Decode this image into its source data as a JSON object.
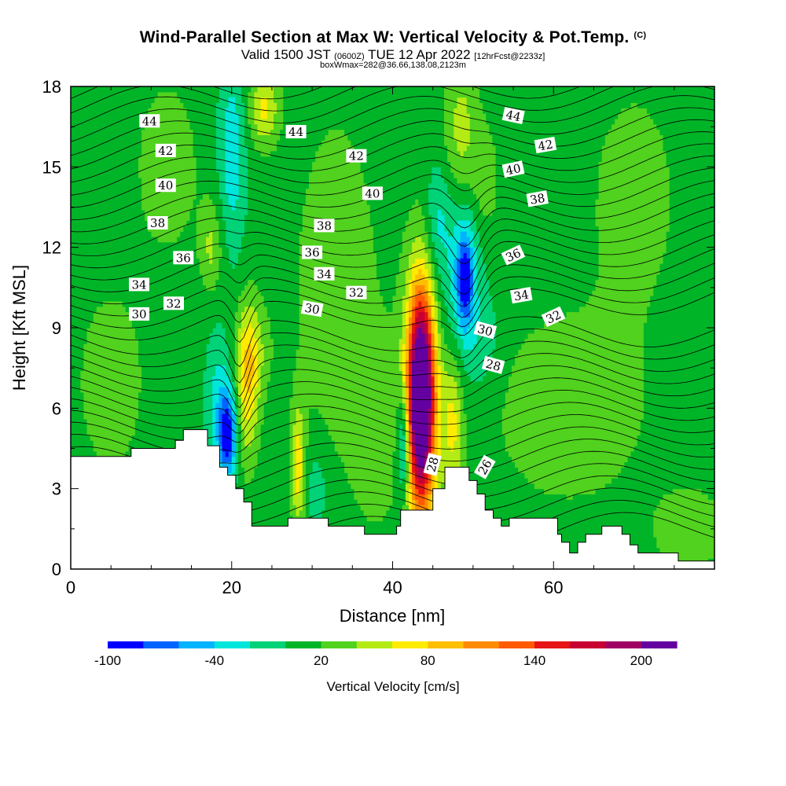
{
  "title": {
    "main": "Wind-Parallel Section at Max W: Vertical Velocity & Pot.Temp.",
    "copyright": "(C)",
    "valid_prefix": "Valid 1500 JST",
    "valid_utc": "(0600Z)",
    "valid_date": "TUE 12 Apr 2022",
    "forecast": "[12hrFcst@2233z]",
    "box_info": "boxWmax=282@36.66,138.08,2123m"
  },
  "colors": {
    "bins": [
      "#0000ff",
      "#0064ff",
      "#00b4ff",
      "#00e6dc",
      "#00d278",
      "#00b428",
      "#50d21e",
      "#b4eb14",
      "#ffeb00",
      "#ffbe00",
      "#ff8c00",
      "#ff5a00",
      "#e61414",
      "#c80032",
      "#a00064",
      "#6400a0"
    ],
    "background_bin": "#00d278",
    "terrain": "#ffffff",
    "contour": "#000000"
  },
  "chart_data": {
    "type": "heatmap",
    "xlabel": "Distance [nm]",
    "ylabel": "Height [Kft MSL]",
    "xlim": [
      0,
      80
    ],
    "ylim": [
      0,
      18
    ],
    "x_ticks": [
      0,
      20,
      40,
      60
    ],
    "y_ticks": [
      0,
      3,
      6,
      9,
      12,
      15,
      18
    ],
    "colorbar": {
      "label": "Vertical Velocity [cm/s]",
      "levels": [
        -100,
        -80,
        -60,
        -40,
        -20,
        0,
        20,
        40,
        60,
        80,
        100,
        120,
        140,
        160,
        180,
        200,
        220
      ],
      "tick_labels": [
        "-100",
        "-40",
        "20",
        "80",
        "140",
        "200"
      ],
      "tick_values": [
        -100,
        -40,
        20,
        80,
        140,
        200
      ]
    },
    "w_features": [
      {
        "x": 43.5,
        "y": 6.5,
        "sx": 1.1,
        "sy": 2.6,
        "w": 200
      },
      {
        "x": 43.5,
        "y": 6.0,
        "sx": 1.6,
        "sy": 3.6,
        "w": 90
      },
      {
        "x": 47.5,
        "y": 5.5,
        "sx": 0.9,
        "sy": 2.0,
        "w": 55
      },
      {
        "x": 28.3,
        "y": 3.8,
        "sx": 0.6,
        "sy": 1.6,
        "w": 60
      },
      {
        "x": 22.0,
        "y": 6.8,
        "sx": 1.0,
        "sy": 2.0,
        "w": 60
      },
      {
        "x": 22.5,
        "y": 8.2,
        "sx": 1.6,
        "sy": 1.3,
        "w": 30
      },
      {
        "x": 24.0,
        "y": 17.2,
        "sx": 1.3,
        "sy": 1.0,
        "w": 55
      },
      {
        "x": 48.5,
        "y": 16.2,
        "sx": 1.5,
        "sy": 2.0,
        "w": 45
      },
      {
        "x": 51.5,
        "y": 14.5,
        "sx": 1.2,
        "sy": 1.5,
        "w": 25
      },
      {
        "x": 17.5,
        "y": 12.0,
        "sx": 1.0,
        "sy": 1.2,
        "w": 35
      },
      {
        "x": 19.5,
        "y": 5.0,
        "sx": 0.8,
        "sy": 1.1,
        "w": -95
      },
      {
        "x": 18.5,
        "y": 6.3,
        "sx": 1.2,
        "sy": 1.8,
        "w": -35
      },
      {
        "x": 49.0,
        "y": 10.8,
        "sx": 0.7,
        "sy": 1.2,
        "w": -80
      },
      {
        "x": 48.5,
        "y": 11.0,
        "sx": 1.8,
        "sy": 2.8,
        "w": -40
      },
      {
        "x": 45.5,
        "y": 13.0,
        "sx": 1.0,
        "sy": 1.5,
        "w": -30
      },
      {
        "x": 20.0,
        "y": 15.5,
        "sx": 1.2,
        "sy": 2.6,
        "w": -40
      },
      {
        "x": 41.3,
        "y": 4.5,
        "sx": 0.5,
        "sy": 1.2,
        "w": -60
      },
      {
        "x": 41.5,
        "y": 5.0,
        "sx": 0.9,
        "sy": 2.2,
        "w": -25
      },
      {
        "x": 30.5,
        "y": 3.0,
        "sx": 1.0,
        "sy": 1.2,
        "w": -25
      },
      {
        "x": 51.5,
        "y": 8.5,
        "sx": 1.5,
        "sy": 1.3,
        "w": -20
      },
      {
        "x": 5.0,
        "y": 7.0,
        "sx": 3.0,
        "sy": 2.5,
        "w": 25
      },
      {
        "x": 12.0,
        "y": 15.0,
        "sx": 3.0,
        "sy": 2.5,
        "w": 23
      },
      {
        "x": 33.0,
        "y": 10.5,
        "sx": 4.0,
        "sy": 5.0,
        "w": 24
      },
      {
        "x": 38.0,
        "y": 5.0,
        "sx": 2.0,
        "sy": 2.5,
        "w": 22
      },
      {
        "x": 62.0,
        "y": 6.0,
        "sx": 8.0,
        "sy": 3.0,
        "w": 22
      },
      {
        "x": 70.0,
        "y": 14.0,
        "sx": 4.0,
        "sy": 3.0,
        "w": 22
      },
      {
        "x": 77.0,
        "y": 1.5,
        "sx": 3.0,
        "sy": 1.0,
        "w": 30
      }
    ],
    "terrain_profile": {
      "x": [
        0,
        7.5,
        7.5,
        13,
        13,
        14,
        14,
        17,
        17,
        18.5,
        18.5,
        19.5,
        19.5,
        20.5,
        20.5,
        21.5,
        21.5,
        22.5,
        22.5,
        24.5,
        24.5,
        27,
        27,
        31.5,
        31.5,
        32,
        32,
        36.5,
        36.5,
        40.5,
        40.5,
        41,
        41,
        45,
        45,
        46.5,
        46.5,
        49.5,
        49.5,
        50.5,
        50.5,
        51.5,
        51.5,
        52.5,
        52.5,
        53.5,
        53.5,
        54.5,
        54.5,
        55.5,
        55.5,
        60.5,
        60.5,
        61,
        61,
        62,
        62,
        63,
        63,
        64,
        64,
        66,
        66,
        68.5,
        68.5,
        69.5,
        69.5,
        70.5,
        70.5,
        75.5,
        75.5,
        80
      ],
      "y": [
        4.2,
        4.2,
        4.5,
        4.5,
        4.8,
        4.8,
        5.2,
        5.2,
        4.6,
        4.6,
        3.8,
        3.8,
        3.5,
        3.5,
        3.0,
        3.0,
        2.5,
        2.5,
        1.6,
        1.6,
        1.6,
        1.6,
        1.9,
        1.9,
        1.9,
        1.9,
        1.6,
        1.6,
        1.3,
        1.3,
        1.6,
        1.6,
        2.2,
        2.2,
        3.0,
        3.0,
        3.8,
        3.8,
        3.3,
        3.3,
        2.8,
        2.8,
        2.2,
        2.2,
        1.9,
        1.9,
        1.6,
        1.6,
        1.9,
        1.9,
        1.9,
        1.9,
        1.3,
        1.3,
        1.0,
        1.0,
        0.6,
        0.6,
        1.0,
        1.0,
        1.3,
        1.3,
        1.6,
        1.6,
        1.3,
        1.3,
        0.9,
        0.9,
        0.6,
        0.6,
        0.3,
        0.3,
        0.3
      ]
    },
    "theta_contour_labels": [
      {
        "text": "44",
        "x": 9.8,
        "y": 16.7,
        "rot": 0
      },
      {
        "text": "44",
        "x": 28.0,
        "y": 16.3,
        "rot": 0
      },
      {
        "text": "44",
        "x": 55.0,
        "y": 16.9,
        "rot": 12
      },
      {
        "text": "42",
        "x": 11.8,
        "y": 15.6,
        "rot": 0
      },
      {
        "text": "42",
        "x": 35.5,
        "y": 15.4,
        "rot": 0
      },
      {
        "text": "42",
        "x": 59.0,
        "y": 15.8,
        "rot": -10
      },
      {
        "text": "40",
        "x": 11.8,
        "y": 14.3,
        "rot": 0
      },
      {
        "text": "40",
        "x": 37.5,
        "y": 14.0,
        "rot": 0
      },
      {
        "text": "40",
        "x": 55.0,
        "y": 14.9,
        "rot": -12
      },
      {
        "text": "38",
        "x": 10.8,
        "y": 12.9,
        "rot": 0
      },
      {
        "text": "38",
        "x": 31.5,
        "y": 12.8,
        "rot": 0
      },
      {
        "text": "38",
        "x": 58.0,
        "y": 13.8,
        "rot": -10
      },
      {
        "text": "36",
        "x": 14.0,
        "y": 11.6,
        "rot": 0
      },
      {
        "text": "36",
        "x": 30.0,
        "y": 11.8,
        "rot": 0
      },
      {
        "text": "36",
        "x": 55.0,
        "y": 11.7,
        "rot": -25
      },
      {
        "text": "34",
        "x": 8.5,
        "y": 10.6,
        "rot": 0
      },
      {
        "text": "34",
        "x": 31.5,
        "y": 11.0,
        "rot": 0
      },
      {
        "text": "34",
        "x": 56.0,
        "y": 10.2,
        "rot": -10
      },
      {
        "text": "32",
        "x": 12.8,
        "y": 9.9,
        "rot": 0
      },
      {
        "text": "32",
        "x": 35.5,
        "y": 10.3,
        "rot": 0
      },
      {
        "text": "32",
        "x": 60.0,
        "y": 9.4,
        "rot": -25
      },
      {
        "text": "30",
        "x": 8.5,
        "y": 9.5,
        "rot": 0
      },
      {
        "text": "30",
        "x": 30.0,
        "y": 9.7,
        "rot": 10
      },
      {
        "text": "30",
        "x": 51.5,
        "y": 8.9,
        "rot": 15
      },
      {
        "text": "28",
        "x": 52.5,
        "y": 7.6,
        "rot": 15
      },
      {
        "text": "28",
        "x": 45.0,
        "y": 3.9,
        "rot": -75
      },
      {
        "text": "26",
        "x": 51.5,
        "y": 3.8,
        "rot": -60
      }
    ]
  }
}
